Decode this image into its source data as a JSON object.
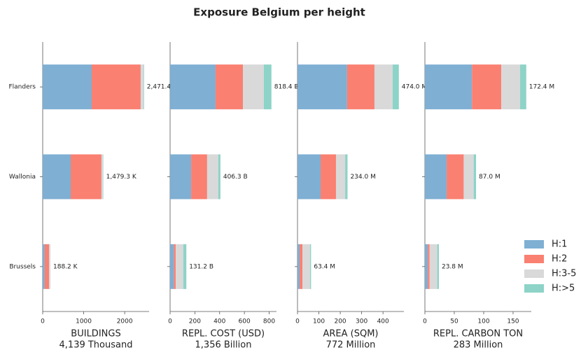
{
  "title": "Exposure Belgium per height",
  "chart_data": [
    {
      "type": "hbar-stacked",
      "categories": [
        "Flanders",
        "Wallonia",
        "Brussels"
      ],
      "xlabel": "BUILDINGS",
      "subtitle": "4,139 Thousand",
      "series": [
        {
          "name": "H:1",
          "color": "#7fafd3",
          "values": [
            1195,
            683,
            50
          ]
        },
        {
          "name": "H:2",
          "color": "#fa8072",
          "values": [
            1194,
            750,
            105
          ]
        },
        {
          "name": "H:3-5",
          "color": "#d9d9d9",
          "values": [
            68,
            38,
            30
          ]
        },
        {
          "name": "H:>5",
          "color": "#8dd3c7",
          "values": [
            14.4,
            8.3,
            3.2
          ]
        }
      ],
      "totals": {
        "values": [
          2471.4,
          1479.3,
          188.2
        ],
        "value_labels": [
          "2,471.4 K",
          "1,479.3 K",
          "188.2 K"
        ]
      },
      "xlim": [
        0,
        2595
      ],
      "xticks": [
        0,
        1000,
        2000
      ]
    },
    {
      "type": "hbar-stacked",
      "categories": [
        "Flanders",
        "Wallonia",
        "Brussels"
      ],
      "xlabel": "REPL. COST (USD)",
      "subtitle": "1,356 Billion",
      "series": [
        {
          "name": "H:1",
          "color": "#7fafd3",
          "values": [
            367,
            170,
            30
          ]
        },
        {
          "name": "H:2",
          "color": "#fa8072",
          "values": [
            221,
            129,
            15
          ]
        },
        {
          "name": "H:3-5",
          "color": "#d9d9d9",
          "values": [
            169,
            91,
            62
          ]
        },
        {
          "name": "H:>5",
          "color": "#8dd3c7",
          "values": [
            61.4,
            16.3,
            24.2
          ]
        }
      ],
      "totals": {
        "values": [
          818.4,
          406.3,
          131.2
        ],
        "value_labels": [
          "818.4 B",
          "406.3 B",
          "131.2 B"
        ]
      },
      "xlim": [
        0,
        859.3
      ],
      "xticks": [
        0,
        200,
        400,
        600,
        800
      ]
    },
    {
      "type": "hbar-stacked",
      "categories": [
        "Flanders",
        "Wallonia",
        "Brussels"
      ],
      "xlabel": "AREA (SQM)",
      "subtitle": "772 Million",
      "series": [
        {
          "name": "H:1",
          "color": "#7fafd3",
          "values": [
            232,
            108,
            10
          ]
        },
        {
          "name": "H:2",
          "color": "#fa8072",
          "values": [
            128,
            72,
            13
          ]
        },
        {
          "name": "H:3-5",
          "color": "#d9d9d9",
          "values": [
            85,
            43,
            36
          ]
        },
        {
          "name": "H:>5",
          "color": "#8dd3c7",
          "values": [
            29,
            11,
            4.4
          ]
        }
      ],
      "totals": {
        "values": [
          474.0,
          234.0,
          63.4
        ],
        "value_labels": [
          "474.0 M",
          "234.0 M",
          "63.4 M"
        ]
      },
      "xlim": [
        0,
        497.7
      ],
      "xticks": [
        0,
        100,
        200,
        300,
        400
      ]
    },
    {
      "type": "hbar-stacked",
      "categories": [
        "Flanders",
        "Wallonia",
        "Brussels"
      ],
      "xlabel": "REPL. CARBON TON",
      "subtitle": "283 Million",
      "series": [
        {
          "name": "H:1",
          "color": "#7fafd3",
          "values": [
            80,
            37,
            5
          ]
        },
        {
          "name": "H:2",
          "color": "#fa8072",
          "values": [
            50,
            29,
            3
          ]
        },
        {
          "name": "H:3-5",
          "color": "#d9d9d9",
          "values": [
            32,
            17,
            13
          ]
        },
        {
          "name": "H:>5",
          "color": "#8dd3c7",
          "values": [
            10.4,
            4,
            2.8
          ]
        }
      ],
      "totals": {
        "values": [
          172.4,
          87.0,
          23.8
        ],
        "value_labels": [
          "172.4 M",
          "87.0 M",
          "23.8 M"
        ]
      },
      "xlim": [
        0,
        181
      ],
      "xticks": [
        0,
        50,
        100,
        150
      ],
      "legend": "lower right"
    }
  ]
}
